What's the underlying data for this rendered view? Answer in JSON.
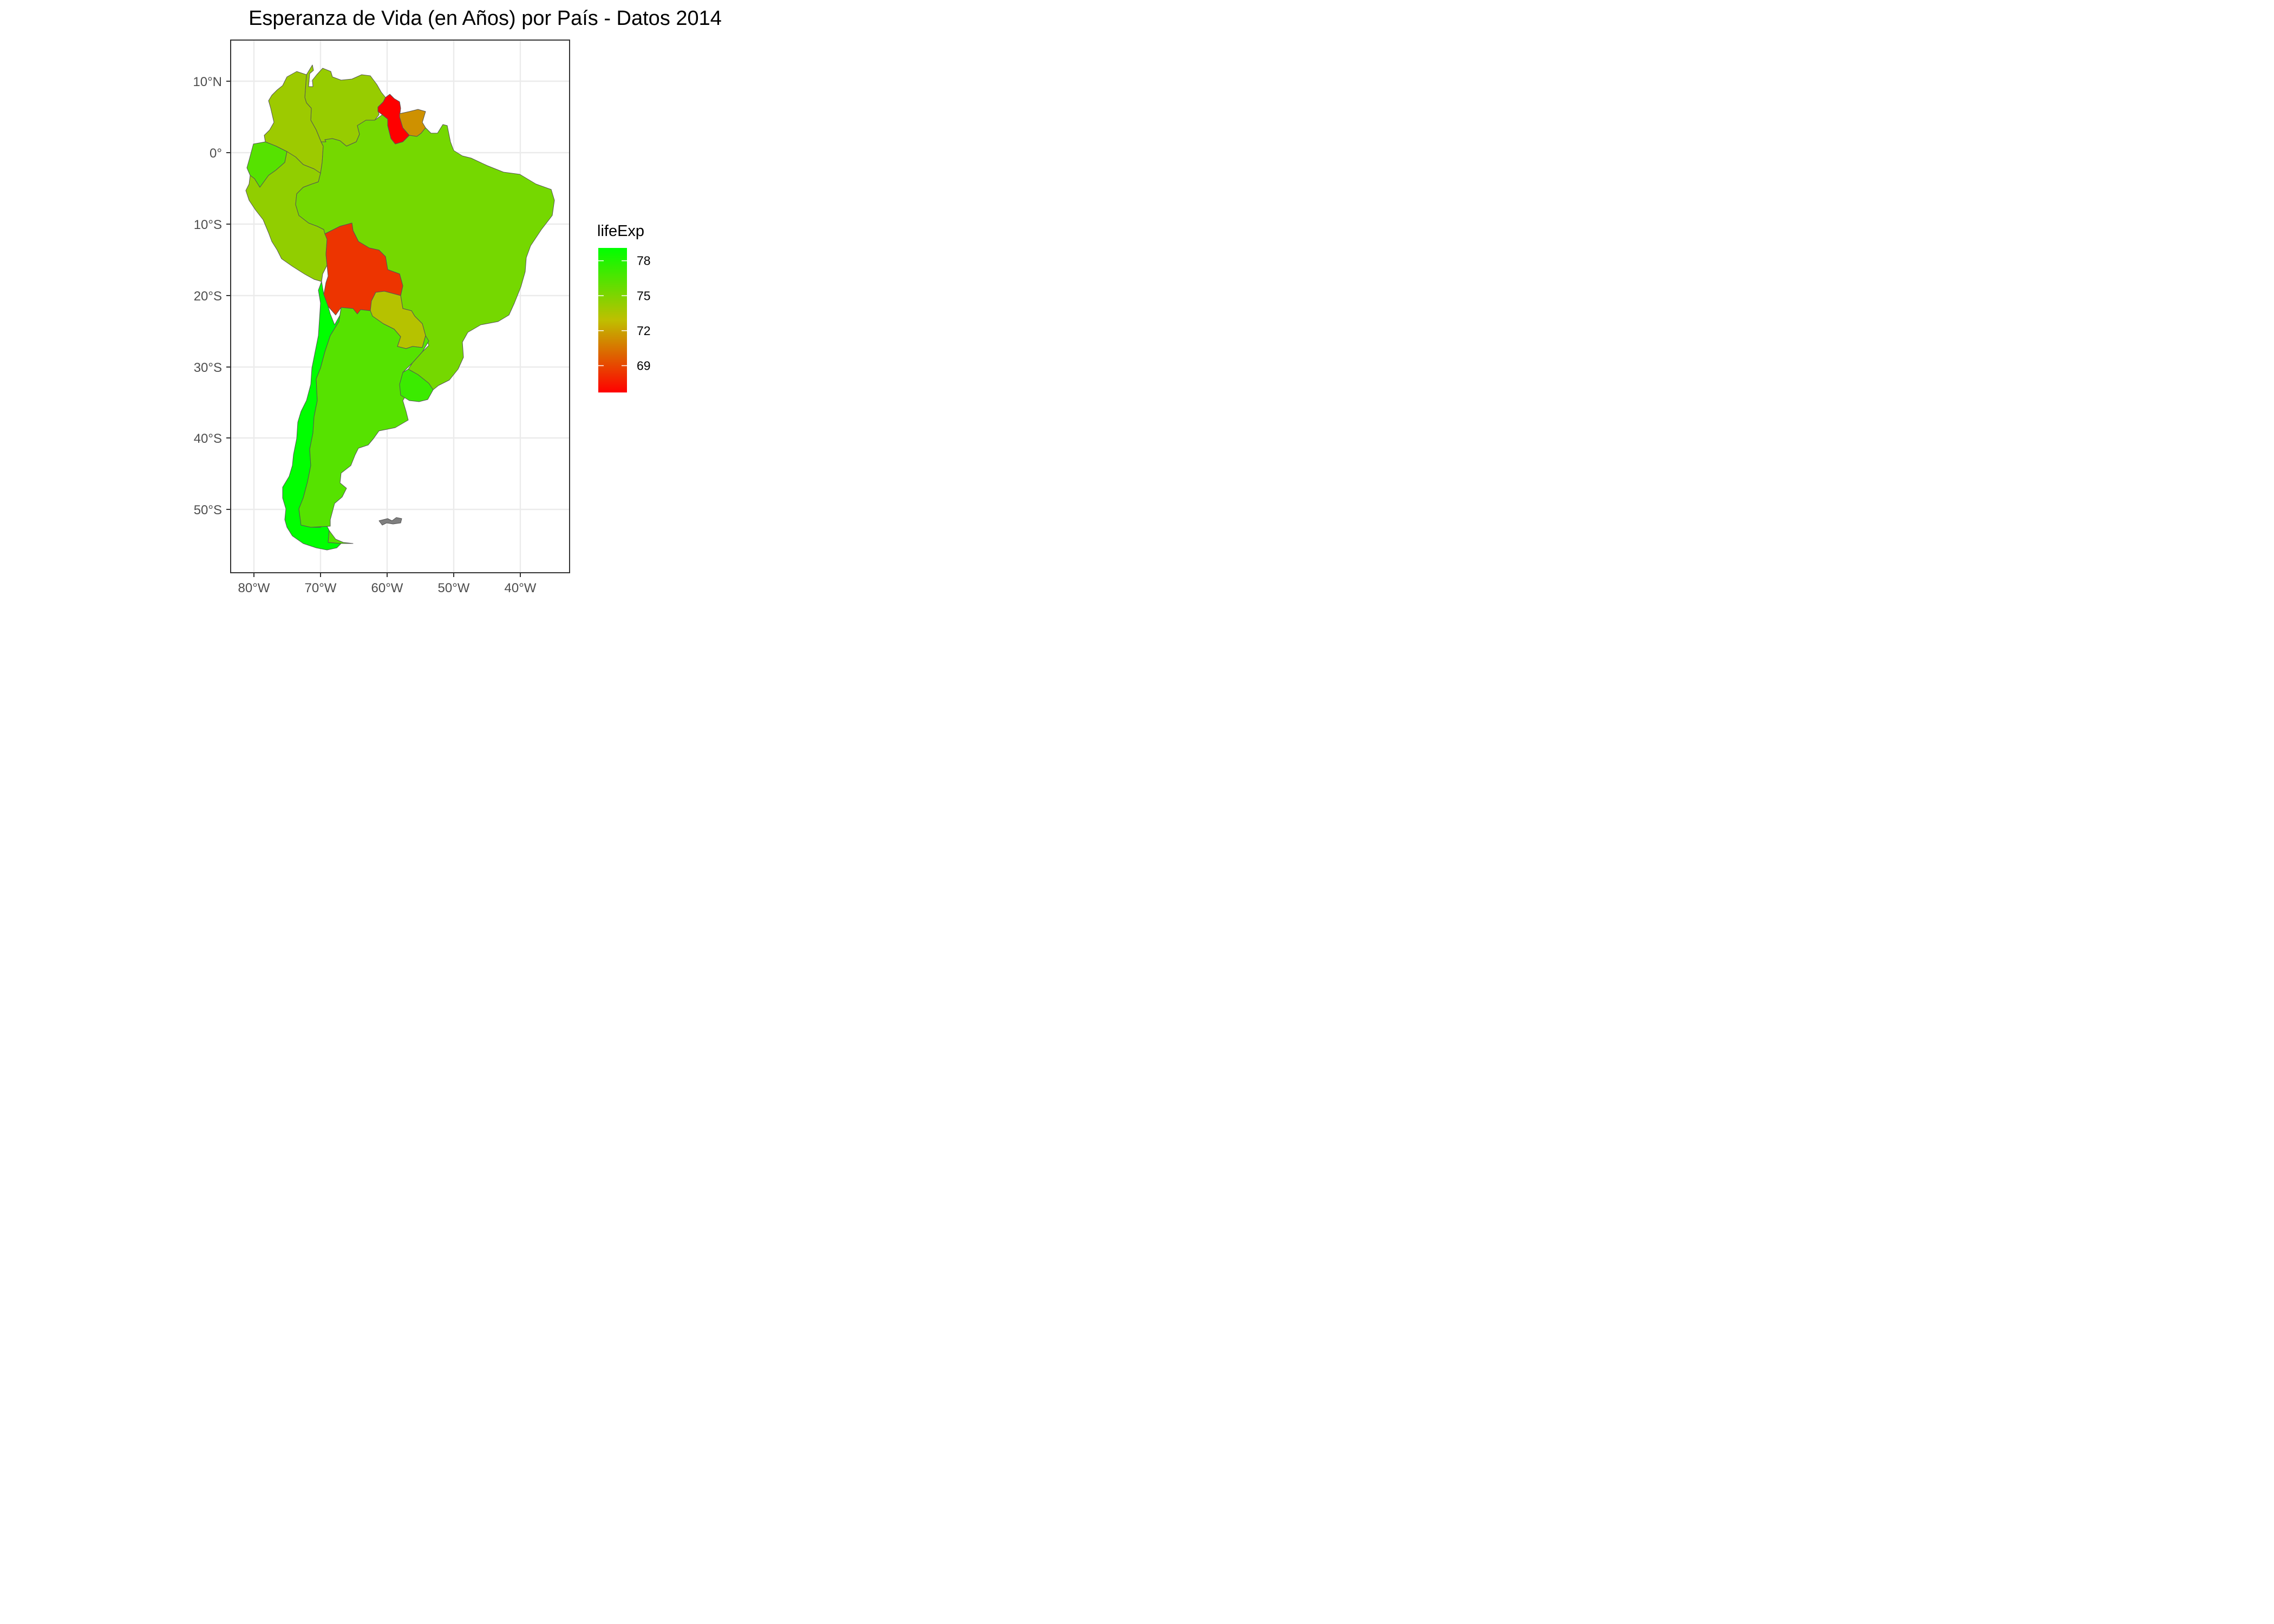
{
  "title": "Esperanza de Vida (en Años) por País - Datos 2014",
  "axes": {
    "x_ticks": [
      {
        "lon": -80,
        "label": "80°W"
      },
      {
        "lon": -70,
        "label": "70°W"
      },
      {
        "lon": -60,
        "label": "60°W"
      },
      {
        "lon": -50,
        "label": "50°W"
      },
      {
        "lon": -40,
        "label": "40°W"
      }
    ],
    "y_ticks": [
      {
        "lat": 10,
        "label": "10°N"
      },
      {
        "lat": 0,
        "label": "0°"
      },
      {
        "lat": -10,
        "label": "10°S"
      },
      {
        "lat": -20,
        "label": "20°S"
      },
      {
        "lat": -30,
        "label": "30°S"
      },
      {
        "lat": -40,
        "label": "40°S"
      },
      {
        "lat": -50,
        "label": "50°S"
      }
    ]
  },
  "legend": {
    "title": "lifeExp",
    "color_low": "#ff0000",
    "color_mid": "#bfbf00",
    "color_high": "#00ff00",
    "range": [
      66.7,
      79.1
    ],
    "breaks": [
      {
        "value": 78,
        "label": "78"
      },
      {
        "value": 75,
        "label": "75"
      },
      {
        "value": 72,
        "label": "72"
      },
      {
        "value": 69,
        "label": "69"
      }
    ]
  },
  "map_data": {
    "countries": [
      {
        "key": "venezuela",
        "lifeExp": 74.2
      },
      {
        "key": "colombia",
        "lifeExp": 74.0
      },
      {
        "key": "guyana",
        "lifeExp": 66.7
      },
      {
        "key": "suriname",
        "lifeExp": 71.4
      },
      {
        "key": "ecuador",
        "lifeExp": 76.3
      },
      {
        "key": "peru",
        "lifeExp": 74.4
      },
      {
        "key": "brazil",
        "lifeExp": 75.3
      },
      {
        "key": "bolivia",
        "lifeExp": 68.4
      },
      {
        "key": "paraguay",
        "lifeExp": 73.2
      },
      {
        "key": "chile",
        "lifeExp": 79.1
      },
      {
        "key": "argentina",
        "lifeExp": 76.3
      },
      {
        "key": "uruguay",
        "lifeExp": 77.2
      },
      {
        "key": "falklands",
        "lifeExp": null,
        "fill": "#7f7f7f"
      }
    ]
  }
}
